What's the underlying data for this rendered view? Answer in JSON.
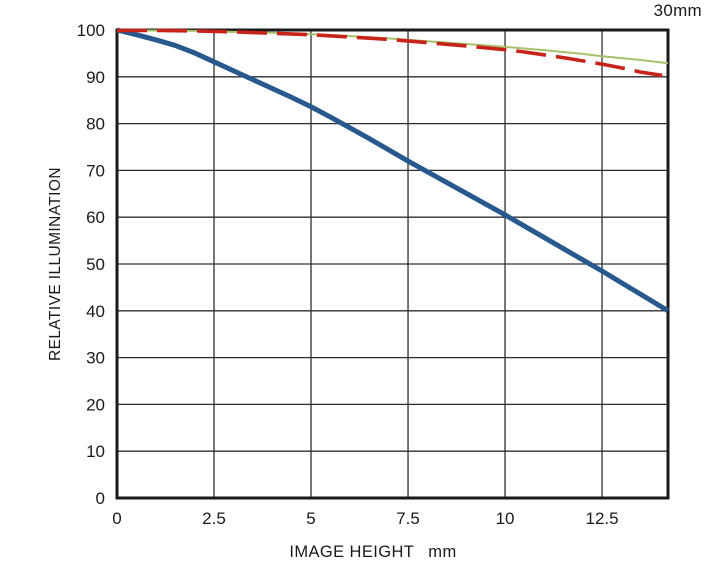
{
  "chart_data": {
    "type": "line",
    "focal_length_label": "30mm",
    "xlabel": "IMAGE HEIGHT",
    "x_unit": "mm",
    "ylabel": "RELATIVE ILLUMINATION",
    "xlim": [
      0,
      14.2
    ],
    "ylim": [
      0,
      100
    ],
    "x_ticks": [
      0,
      2.5,
      5,
      7.5,
      10,
      12.5
    ],
    "x_tick_labels": [
      "0",
      "2.5",
      "5",
      "7.5",
      "10",
      "12.5"
    ],
    "y_ticks": [
      0,
      10,
      20,
      30,
      40,
      50,
      60,
      70,
      80,
      90,
      100
    ],
    "grid": true,
    "legend": "none",
    "axis_color": "#1a1a1a",
    "grid_color": "#2e2e2e",
    "tick_font_size": 17,
    "series": [
      {
        "name": "blue-solid",
        "color": "#27598E",
        "stroke_width": 5,
        "dash": null,
        "x": [
          0,
          0.5,
          1,
          1.5,
          2,
          2.5,
          3,
          3.5,
          4,
          4.5,
          5,
          5.5,
          6,
          6.5,
          7,
          7.5,
          8,
          8.5,
          9,
          9.5,
          10,
          10.5,
          11,
          11.5,
          12,
          12.5,
          13,
          13.5,
          14,
          14.2
        ],
        "y": [
          100,
          99.0,
          97.9,
          96.7,
          95.1,
          93.2,
          91.3,
          89.4,
          87.5,
          85.6,
          83.6,
          81.4,
          79.1,
          76.8,
          74.4,
          72.0,
          69.7,
          67.4,
          65.1,
          62.8,
          60.5,
          58.1,
          55.7,
          53.3,
          50.9,
          48.5,
          46.0,
          43.5,
          41.0,
          40.0
        ]
      },
      {
        "name": "green-solid",
        "color": "#A6C06B",
        "stroke_width": 2,
        "dash": null,
        "x": [
          0,
          1,
          2,
          3,
          4,
          5,
          6,
          7,
          8,
          9,
          10,
          11,
          12,
          12.5,
          13,
          13.5,
          14.2
        ],
        "y": [
          99.9,
          99.9,
          99.8,
          99.6,
          99.4,
          99.1,
          98.7,
          98.2,
          97.6,
          97.0,
          96.4,
          95.7,
          94.9,
          94.4,
          94.0,
          93.6,
          92.9
        ]
      },
      {
        "name": "red-dashed",
        "color": "#C8231A",
        "stroke_width": 3.6,
        "dash": "30 10",
        "x": [
          0,
          1,
          2,
          3,
          4,
          5,
          6,
          7,
          8,
          9,
          10,
          10.5,
          11,
          11.5,
          12,
          12.5,
          13,
          13.5,
          14.05
        ],
        "y": [
          99.9,
          99.9,
          99.8,
          99.6,
          99.3,
          99.0,
          98.5,
          98.0,
          97.3,
          96.6,
          95.8,
          95.3,
          94.7,
          94.1,
          93.4,
          92.7,
          91.9,
          91.0,
          90.3
        ]
      }
    ]
  }
}
